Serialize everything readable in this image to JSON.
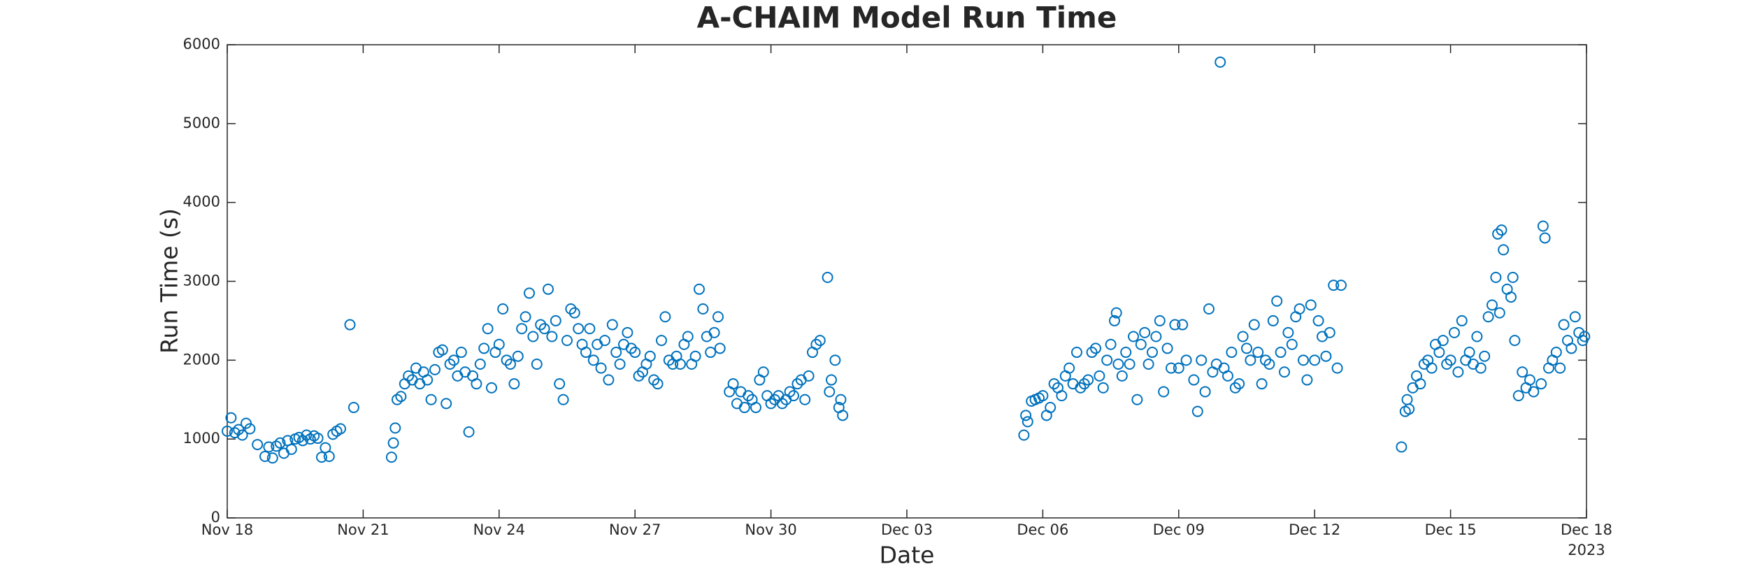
{
  "chart_data": {
    "type": "scatter",
    "title": "A-CHAIM Model Run Time",
    "x_label": "Date",
    "y_label": "Run Time (s)",
    "x_secondary_label": "2023",
    "color": "#0072bd",
    "xlim": [
      "2023-11-18T00:00",
      "2023-12-18T00:00"
    ],
    "xticks": [
      {
        "value": "2023-11-18T00:00",
        "label": "Nov 18"
      },
      {
        "value": "2023-11-21T00:00",
        "label": "Nov 21"
      },
      {
        "value": "2023-11-24T00:00",
        "label": "Nov 24"
      },
      {
        "value": "2023-11-27T00:00",
        "label": "Nov 27"
      },
      {
        "value": "2023-11-30T00:00",
        "label": "Nov 30"
      },
      {
        "value": "2023-12-03T00:00",
        "label": "Dec 03"
      },
      {
        "value": "2023-12-06T00:00",
        "label": "Dec 06"
      },
      {
        "value": "2023-12-09T00:00",
        "label": "Dec 09"
      },
      {
        "value": "2023-12-12T00:00",
        "label": "Dec 12"
      },
      {
        "value": "2023-12-15T00:00",
        "label": "Dec 15"
      },
      {
        "value": "2023-12-18T00:00",
        "label": "Dec 18"
      }
    ],
    "ylim": [
      0,
      6000
    ],
    "yticks": [
      0,
      1000,
      2000,
      3000,
      4000,
      5000,
      6000
    ],
    "grid": false,
    "x": [
      "2023-11-18T00:00",
      "2023-11-18T02:00",
      "2023-11-18T04:00",
      "2023-11-18T06:00",
      "2023-11-18T08:00",
      "2023-11-18T10:00",
      "2023-11-18T12:00",
      "2023-11-18T16:00",
      "2023-11-18T20:00",
      "2023-11-18T22:00",
      "2023-11-19T00:00",
      "2023-11-19T02:00",
      "2023-11-19T04:00",
      "2023-11-19T06:00",
      "2023-11-19T08:00",
      "2023-11-19T10:00",
      "2023-11-19T12:00",
      "2023-11-19T14:00",
      "2023-11-19T16:00",
      "2023-11-19T18:00",
      "2023-11-19T20:00",
      "2023-11-19T22:00",
      "2023-11-20T00:00",
      "2023-11-20T02:00",
      "2023-11-20T04:00",
      "2023-11-20T06:00",
      "2023-11-20T08:00",
      "2023-11-20T10:00",
      "2023-11-20T12:00",
      "2023-11-20T17:00",
      "2023-11-20T19:00",
      "2023-11-21T15:00",
      "2023-11-21T16:00",
      "2023-11-21T17:00",
      "2023-11-21T18:00",
      "2023-11-21T20:00",
      "2023-11-21T22:00",
      "2023-11-22T00:00",
      "2023-11-22T02:00",
      "2023-11-22T04:00",
      "2023-11-22T06:00",
      "2023-11-22T08:00",
      "2023-11-22T10:00",
      "2023-11-22T12:00",
      "2023-11-22T14:00",
      "2023-11-22T16:00",
      "2023-11-22T18:00",
      "2023-11-22T20:00",
      "2023-11-22T22:00",
      "2023-11-23T00:00",
      "2023-11-23T02:00",
      "2023-11-23T04:00",
      "2023-11-23T06:00",
      "2023-11-23T08:00",
      "2023-11-23T10:00",
      "2023-11-23T12:00",
      "2023-11-23T14:00",
      "2023-11-23T16:00",
      "2023-11-23T18:00",
      "2023-11-23T20:00",
      "2023-11-23T22:00",
      "2023-11-24T00:00",
      "2023-11-24T02:00",
      "2023-11-24T04:00",
      "2023-11-24T06:00",
      "2023-11-24T08:00",
      "2023-11-24T10:00",
      "2023-11-24T12:00",
      "2023-11-24T14:00",
      "2023-11-24T16:00",
      "2023-11-24T18:00",
      "2023-11-24T20:00",
      "2023-11-24T22:00",
      "2023-11-25T00:00",
      "2023-11-25T02:00",
      "2023-11-25T04:00",
      "2023-11-25T06:00",
      "2023-11-25T08:00",
      "2023-11-25T10:00",
      "2023-11-25T12:00",
      "2023-11-25T14:00",
      "2023-11-25T16:00",
      "2023-11-25T18:00",
      "2023-11-25T20:00",
      "2023-11-25T22:00",
      "2023-11-26T00:00",
      "2023-11-26T02:00",
      "2023-11-26T04:00",
      "2023-11-26T06:00",
      "2023-11-26T08:00",
      "2023-11-26T10:00",
      "2023-11-26T12:00",
      "2023-11-26T14:00",
      "2023-11-26T16:00",
      "2023-11-26T18:00",
      "2023-11-26T20:00",
      "2023-11-26T22:00",
      "2023-11-27T00:00",
      "2023-11-27T02:00",
      "2023-11-27T04:00",
      "2023-11-27T06:00",
      "2023-11-27T08:00",
      "2023-11-27T10:00",
      "2023-11-27T12:00",
      "2023-11-27T14:00",
      "2023-11-27T16:00",
      "2023-11-27T18:00",
      "2023-11-27T20:00",
      "2023-11-27T22:00",
      "2023-11-28T00:00",
      "2023-11-28T02:00",
      "2023-11-28T04:00",
      "2023-11-28T06:00",
      "2023-11-28T08:00",
      "2023-11-28T10:00",
      "2023-11-28T12:00",
      "2023-11-28T14:00",
      "2023-11-28T16:00",
      "2023-11-28T18:00",
      "2023-11-28T20:00",
      "2023-11-28T21:00",
      "2023-11-29T02:00",
      "2023-11-29T04:00",
      "2023-11-29T06:00",
      "2023-11-29T08:00",
      "2023-11-29T10:00",
      "2023-11-29T12:00",
      "2023-11-29T14:00",
      "2023-11-29T16:00",
      "2023-11-29T18:00",
      "2023-11-29T20:00",
      "2023-11-29T22:00",
      "2023-11-30T00:00",
      "2023-11-30T02:00",
      "2023-11-30T04:00",
      "2023-11-30T06:00",
      "2023-11-30T08:00",
      "2023-11-30T10:00",
      "2023-11-30T12:00",
      "2023-11-30T14:00",
      "2023-11-30T16:00",
      "2023-11-30T18:00",
      "2023-11-30T20:00",
      "2023-11-30T22:00",
      "2023-12-01T00:00",
      "2023-12-01T02:00",
      "2023-12-01T06:00",
      "2023-12-01T07:00",
      "2023-12-01T08:00",
      "2023-12-01T10:00",
      "2023-12-01T12:00",
      "2023-12-01T13:00",
      "2023-12-01T14:00",
      "2023-12-05T14:00",
      "2023-12-05T15:00",
      "2023-12-05T16:00",
      "2023-12-05T18:00",
      "2023-12-05T20:00",
      "2023-12-05T22:00",
      "2023-12-06T00:00",
      "2023-12-06T02:00",
      "2023-12-06T04:00",
      "2023-12-06T06:00",
      "2023-12-06T08:00",
      "2023-12-06T10:00",
      "2023-12-06T12:00",
      "2023-12-06T14:00",
      "2023-12-06T16:00",
      "2023-12-06T18:00",
      "2023-12-06T20:00",
      "2023-12-06T22:00",
      "2023-12-07T00:00",
      "2023-12-07T02:00",
      "2023-12-07T04:00",
      "2023-12-07T06:00",
      "2023-12-07T08:00",
      "2023-12-07T10:00",
      "2023-12-07T12:00",
      "2023-12-07T14:00",
      "2023-12-07T15:00",
      "2023-12-07T16:00",
      "2023-12-07T18:00",
      "2023-12-07T20:00",
      "2023-12-07T22:00",
      "2023-12-08T00:00",
      "2023-12-08T02:00",
      "2023-12-08T04:00",
      "2023-12-08T06:00",
      "2023-12-08T08:00",
      "2023-12-08T10:00",
      "2023-12-08T12:00",
      "2023-12-08T14:00",
      "2023-12-08T16:00",
      "2023-12-08T18:00",
      "2023-12-08T20:00",
      "2023-12-08T22:00",
      "2023-12-09T00:00",
      "2023-12-09T02:00",
      "2023-12-09T04:00",
      "2023-12-09T08:00",
      "2023-12-09T10:00",
      "2023-12-09T12:00",
      "2023-12-09T14:00",
      "2023-12-09T16:00",
      "2023-12-09T18:00",
      "2023-12-09T20:00",
      "2023-12-09T22:00",
      "2023-12-10T00:00",
      "2023-12-10T02:00",
      "2023-12-10T04:00",
      "2023-12-10T06:00",
      "2023-12-10T08:00",
      "2023-12-10T10:00",
      "2023-12-10T12:00",
      "2023-12-10T14:00",
      "2023-12-10T16:00",
      "2023-12-10T18:00",
      "2023-12-10T20:00",
      "2023-12-10T22:00",
      "2023-12-11T00:00",
      "2023-12-11T02:00",
      "2023-12-11T04:00",
      "2023-12-11T06:00",
      "2023-12-11T08:00",
      "2023-12-11T10:00",
      "2023-12-11T12:00",
      "2023-12-11T14:00",
      "2023-12-11T16:00",
      "2023-12-11T18:00",
      "2023-12-11T20:00",
      "2023-12-11T22:00",
      "2023-12-12T00:00",
      "2023-12-12T02:00",
      "2023-12-12T04:00",
      "2023-12-12T06:00",
      "2023-12-12T08:00",
      "2023-12-12T10:00",
      "2023-12-12T12:00",
      "2023-12-12T14:00",
      "2023-12-13T22:00",
      "2023-12-14T00:00",
      "2023-12-14T01:00",
      "2023-12-14T02:00",
      "2023-12-14T04:00",
      "2023-12-14T06:00",
      "2023-12-14T08:00",
      "2023-12-14T10:00",
      "2023-12-14T12:00",
      "2023-12-14T14:00",
      "2023-12-14T16:00",
      "2023-12-14T18:00",
      "2023-12-14T20:00",
      "2023-12-14T22:00",
      "2023-12-15T00:00",
      "2023-12-15T02:00",
      "2023-12-15T04:00",
      "2023-12-15T06:00",
      "2023-12-15T08:00",
      "2023-12-15T10:00",
      "2023-12-15T12:00",
      "2023-12-15T14:00",
      "2023-12-15T16:00",
      "2023-12-15T18:00",
      "2023-12-15T20:00",
      "2023-12-15T22:00",
      "2023-12-16T00:00",
      "2023-12-16T01:00",
      "2023-12-16T02:00",
      "2023-12-16T03:00",
      "2023-12-16T04:00",
      "2023-12-16T06:00",
      "2023-12-16T08:00",
      "2023-12-16T09:00",
      "2023-12-16T10:00",
      "2023-12-16T12:00",
      "2023-12-16T14:00",
      "2023-12-16T16:00",
      "2023-12-16T18:00",
      "2023-12-16T20:00",
      "2023-12-17T00:00",
      "2023-12-17T01:00",
      "2023-12-17T02:00",
      "2023-12-17T04:00",
      "2023-12-17T06:00",
      "2023-12-17T08:00",
      "2023-12-17T10:00",
      "2023-12-17T12:00",
      "2023-12-17T14:00",
      "2023-12-17T16:00",
      "2023-12-17T18:00",
      "2023-12-17T20:00",
      "2023-12-17T22:00",
      "2023-12-17T23:00"
    ],
    "values": [
      1100,
      1270,
      1080,
      1120,
      1050,
      1200,
      1130,
      930,
      780,
      900,
      760,
      910,
      950,
      820,
      980,
      870,
      1000,
      1020,
      980,
      1050,
      1000,
      1040,
      1010,
      770,
      890,
      780,
      1060,
      1100,
      1130,
      2450,
      1400,
      770,
      950,
      1140,
      1500,
      1540,
      1700,
      1800,
      1750,
      1900,
      1700,
      1850,
      1750,
      1500,
      1880,
      2100,
      2130,
      1450,
      1950,
      2000,
      1800,
      2100,
      1850,
      1090,
      1800,
      1700,
      1950,
      2150,
      2400,
      1650,
      2100,
      2200,
      2650,
      2000,
      1950,
      1700,
      2050,
      2400,
      2550,
      2850,
      2300,
      1950,
      2450,
      2400,
      2900,
      2300,
      2500,
      1700,
      1500,
      2250,
      2650,
      2600,
      2400,
      2200,
      2100,
      2400,
      2000,
      2200,
      1900,
      2250,
      1750,
      2450,
      2100,
      1950,
      2200,
      2350,
      2150,
      2100,
      1800,
      1850,
      1950,
      2050,
      1750,
      1700,
      2250,
      2550,
      2000,
      1950,
      2050,
      1950,
      2200,
      2300,
      1950,
      2050,
      2900,
      2650,
      2300,
      2100,
      2350,
      2550,
      2150,
      1600,
      1700,
      1450,
      1600,
      1400,
      1550,
      1500,
      1400,
      1750,
      1850,
      1550,
      1450,
      1500,
      1550,
      1450,
      1500,
      1600,
      1550,
      1700,
      1750,
      1500,
      1800,
      2100,
      2200,
      2250,
      3050,
      1600,
      1750,
      2000,
      1400,
      1500,
      1300,
      1050,
      1300,
      1220,
      1480,
      1500,
      1520,
      1550,
      1300,
      1400,
      1700,
      1650,
      1550,
      1800,
      1900,
      1700,
      2100,
      1650,
      1700,
      1750,
      2100,
      2150,
      1800,
      1650,
      2000,
      2200,
      2500,
      2600,
      1950,
      1800,
      2100,
      1950,
      2300,
      1500,
      2200,
      2350,
      1950,
      2100,
      2300,
      2500,
      1600,
      2150,
      1900,
      2450,
      1900,
      2450,
      2000,
      1750,
      1350,
      2000,
      1600,
      2650,
      1850,
      1950,
      5780,
      1900,
      1800,
      2100,
      1650,
      1700,
      2300,
      2150,
      2000,
      2450,
      2100,
      1700,
      2000,
      1950,
      2500,
      2750,
      2100,
      1850,
      2350,
      2200,
      2550,
      2650,
      2000,
      1750,
      2700,
      2000,
      2500,
      2300,
      2050,
      2350,
      2950,
      1900,
      2950,
      900,
      1350,
      1500,
      1380,
      1650,
      1800,
      1700,
      1950,
      2000,
      1900,
      2200,
      2100,
      2250,
      1950,
      2000,
      2350,
      1850,
      2500,
      2000,
      2100,
      1950,
      2300,
      1900,
      2050,
      2550,
      2700,
      3050,
      3600,
      2600,
      3650,
      3400,
      2900,
      2800,
      3050,
      2250,
      1550,
      1850,
      1650,
      1750,
      1600,
      1700,
      3700,
      3550,
      1900,
      2000,
      2100,
      1900,
      2450,
      2250,
      2150,
      2550,
      2350,
      2250,
      2300
    ]
  }
}
